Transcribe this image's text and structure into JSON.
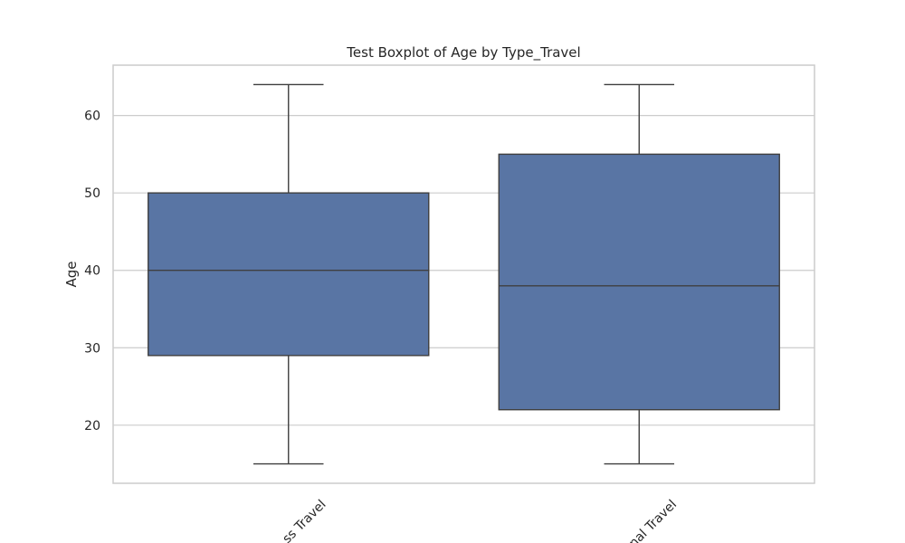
{
  "chart_data": {
    "type": "boxplot",
    "title": "Test Boxplot of Age by Type_Travel",
    "xlabel": "",
    "ylabel": "Age",
    "ylim": [
      12.5,
      66.5
    ],
    "yticks": [
      20,
      30,
      40,
      50,
      60
    ],
    "ytick_labels": [
      "20",
      "30",
      "40",
      "50",
      "60"
    ],
    "grid": true,
    "categories": [
      "ss Travel",
      "nal Travel"
    ],
    "boxes": [
      {
        "category": "ss Travel",
        "whisker_low": 15,
        "q1": 29,
        "median": 40,
        "q3": 50,
        "whisker_high": 64
      },
      {
        "category": "nal Travel",
        "whisker_low": 15,
        "q1": 22,
        "median": 38,
        "q3": 55,
        "whisker_high": 64
      }
    ],
    "colors": {
      "box_fill": "#5975a4",
      "box_edge": "#3f3f3f",
      "grid": "#cccccc",
      "frame": "#cccccc"
    }
  }
}
